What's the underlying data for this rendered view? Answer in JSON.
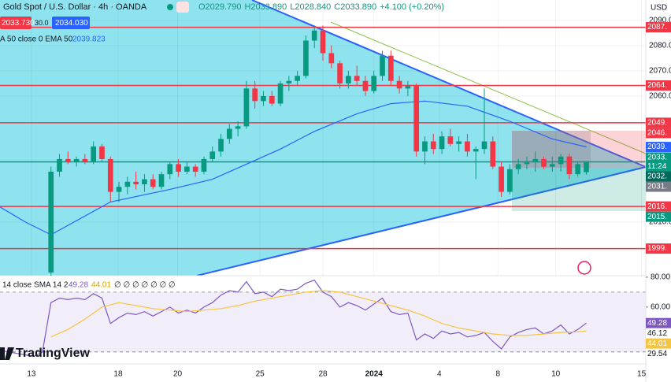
{
  "logo": "TradingView",
  "chart_data": [
    {
      "type": "candlestick",
      "title": "Gold Spot / U.S. Dollar · 4h · OANDA",
      "ohlc_labels": [
        "O2029.790",
        "H2033.890",
        "L2028.840",
        "C2033.890"
      ],
      "change": "+4.100 (+0.20%)",
      "bid": "2033.730",
      "spread": "30.0",
      "ask": "2034.030",
      "currency": "USD",
      "x": [
        6,
        7,
        8,
        9,
        10,
        11,
        12,
        13,
        14,
        15,
        16,
        17,
        18,
        19,
        20,
        21,
        22,
        23,
        24,
        25,
        26,
        27,
        28,
        29,
        30,
        31,
        32,
        33,
        34,
        35,
        36,
        37,
        38,
        39,
        40,
        41,
        42,
        43,
        44,
        45,
        46,
        47,
        48,
        49,
        50,
        51,
        52,
        53,
        54,
        55,
        56,
        57,
        58,
        59,
        60,
        61,
        62,
        63,
        64,
        65,
        66,
        67,
        68,
        69
      ],
      "open": [
        1990,
        2030,
        2035,
        2034,
        2035,
        2034,
        2040,
        2035,
        2022,
        2024,
        2026,
        2025,
        2027,
        2024,
        2029,
        2033,
        2030,
        2032,
        2030,
        2035,
        2038,
        2043,
        2047,
        2048,
        2063,
        2058,
        2060,
        2057,
        2065,
        2066,
        2068,
        2082,
        2086,
        2077,
        2073,
        2065,
        2068,
        2066,
        2062,
        2068,
        2076,
        2066,
        2063,
        2064,
        2038,
        2042,
        2039,
        2044,
        2041,
        2042,
        2038,
        2039,
        2042,
        2032,
        2022,
        2031,
        2033,
        2034,
        2035,
        2032,
        2033,
        2036,
        2029,
        2029.79
      ],
      "high": [
        2032,
        2037,
        2038,
        2036,
        2037,
        2042,
        2041,
        2036,
        2026,
        2028,
        2030,
        2029,
        2029,
        2030,
        2034,
        2035,
        2034,
        2033,
        2036,
        2040,
        2045,
        2049,
        2050,
        2066,
        2066,
        2062,
        2062,
        2066,
        2068,
        2070,
        2084,
        2088,
        2088,
        2080,
        2074,
        2070,
        2072,
        2068,
        2070,
        2078,
        2078,
        2068,
        2066,
        2065,
        2044,
        2045,
        2046,
        2047,
        2044,
        2045,
        2040,
        2063,
        2044,
        2034,
        2033,
        2035,
        2036,
        2038,
        2036,
        2036,
        2037,
        2037,
        2034,
        2033.89
      ],
      "low": [
        1988,
        2028,
        2033,
        2032,
        2033,
        2033,
        2034,
        2018,
        2018,
        2021,
        2023,
        2022,
        2023,
        2023,
        2027,
        2028,
        2029,
        2028,
        2029,
        2034,
        2036,
        2041,
        2044,
        2047,
        2055,
        2056,
        2056,
        2056,
        2062,
        2064,
        2067,
        2079,
        2074,
        2071,
        2063,
        2063,
        2064,
        2060,
        2061,
        2066,
        2064,
        2061,
        2060,
        2036,
        2033,
        2037,
        2037,
        2040,
        2038,
        2036,
        2027,
        2037,
        2031,
        2020,
        2021,
        2029,
        2031,
        2030,
        2031,
        2030,
        2030,
        2027,
        2028,
        2028.84
      ],
      "close": [
        2030,
        2035,
        2034,
        2035,
        2034,
        2040,
        2035,
        2022,
        2024,
        2026,
        2025,
        2027,
        2024,
        2029,
        2033,
        2030,
        2032,
        2030,
        2035,
        2038,
        2043,
        2047,
        2048,
        2063,
        2058,
        2060,
        2057,
        2065,
        2066,
        2068,
        2082,
        2086,
        2077,
        2073,
        2065,
        2068,
        2066,
        2062,
        2068,
        2076,
        2066,
        2063,
        2064,
        2038,
        2042,
        2039,
        2044,
        2041,
        2042,
        2038,
        2039,
        2042,
        2032,
        2022,
        2031,
        2033,
        2034,
        2035,
        2032,
        2033,
        2036,
        2029,
        2033,
        2033.89
      ],
      "up_color": "#089981",
      "down_color": "#f23645",
      "xlim": [
        0,
        76
      ],
      "xticks": [
        {
          "value": 3.7,
          "label": "13"
        },
        {
          "value": 13.9,
          "label": "18"
        },
        {
          "value": 20.9,
          "label": "20"
        },
        {
          "value": 30.6,
          "label": "25"
        },
        {
          "value": 38,
          "label": "28"
        },
        {
          "value": 44,
          "label": "2024"
        },
        {
          "value": 51.7,
          "label": "4"
        },
        {
          "value": 58.6,
          "label": "8"
        },
        {
          "value": 65.4,
          "label": "10"
        },
        {
          "value": 75.5,
          "label": "15"
        }
      ],
      "ylim": [
        1988.75,
        2098.1
      ],
      "yticks": [
        {
          "value": 2090,
          "label": "2090.00"
        },
        {
          "value": 2080,
          "label": "2080.00"
        },
        {
          "value": 2070,
          "label": "2070.00"
        },
        {
          "value": 2060,
          "label": "2060.00"
        },
        {
          "value": 2010,
          "label": "2010.00"
        }
      ],
      "overlay": {
        "legend": "A 50 close 0 EMA 50",
        "value_label": "2039.823",
        "color": "#2962ff",
        "x": [
          0,
          3,
          6,
          13,
          20,
          25,
          29,
          33,
          37,
          42,
          46,
          50,
          55,
          60,
          65,
          69
        ],
        "values": [
          2016,
          2010,
          2005,
          2018,
          2023,
          2027,
          2033,
          2039,
          2046,
          2053,
          2057,
          2058,
          2056,
          2050,
          2043,
          2039.823
        ]
      },
      "levels": {
        "color": "#f23645",
        "values": [
          2087.3,
          2064.2,
          2049.4,
          2016.2,
          1999.5
        ]
      },
      "last_price": {
        "value": 2033.89,
        "label": "2033.",
        "color": "#089981"
      },
      "countdown": "11:24",
      "price_labels": [
        {
          "value": 2087.3,
          "label": "2087.",
          "color": "#f23645"
        },
        {
          "value": 2064.2,
          "label": "2064.",
          "color": "#f23645"
        },
        {
          "value": 2049.4,
          "label": "2049.",
          "color": "#f23645"
        },
        {
          "value": 2046.5,
          "label": "2046.",
          "color": "#f23645"
        },
        {
          "value": 2039.8,
          "label": "2039.",
          "color": "#2962ff"
        },
        {
          "value": 2032.9,
          "label": "2032.",
          "color": "#00695c"
        },
        {
          "value": 2031.5,
          "label": "2031.",
          "color": "#787b86"
        },
        {
          "value": 2016.2,
          "label": "2016.",
          "color": "#f23645"
        },
        {
          "value": 2015.4,
          "label": "2015.",
          "color": "#089981"
        },
        {
          "value": 1999.5,
          "label": "1999.",
          "color": "#f23645"
        }
      ]
    },
    {
      "type": "line",
      "title": "14 close SMA 14 2",
      "extra_legend": "∅ ∅ ∅ ∅ ∅ ∅ ∅",
      "xlim": [
        0,
        76
      ],
      "ylim": [
        22,
        81
      ],
      "yticks": [
        {
          "value": 80,
          "label": "80.00"
        },
        {
          "value": 60,
          "label": "60.00"
        }
      ],
      "bands": [
        70,
        30
      ],
      "series": [
        {
          "color": "#7e57c2",
          "value_label": "49.28",
          "x": [
            0,
            1,
            2,
            3,
            4,
            5,
            6,
            7,
            8,
            9,
            10,
            11,
            12,
            13,
            14,
            15,
            16,
            17,
            18,
            19,
            20,
            21,
            22,
            23,
            24,
            25,
            26,
            27,
            28,
            29,
            30,
            31,
            32,
            33,
            34,
            35,
            36,
            37,
            38,
            39,
            40,
            41,
            42,
            43,
            44,
            45,
            46,
            47,
            48,
            49,
            50,
            51,
            52,
            53,
            54,
            55,
            56,
            57,
            58,
            59,
            60,
            61,
            62,
            63,
            64,
            65,
            66,
            67,
            68,
            69
          ],
          "values": [
            31,
            30,
            29,
            28,
            27,
            30,
            63,
            66,
            65,
            66,
            65,
            69,
            66,
            49,
            53,
            56,
            55,
            57,
            54,
            57,
            60,
            56,
            58,
            56,
            60,
            63,
            68,
            71,
            70,
            77,
            69,
            70,
            67,
            72,
            71,
            72,
            76,
            78,
            70,
            67,
            60,
            63,
            61,
            58,
            62,
            66,
            57,
            55,
            56,
            38,
            42,
            39,
            44,
            42,
            43,
            40,
            41,
            43,
            37,
            32,
            40,
            43,
            45,
            46,
            42,
            44,
            48,
            42,
            45,
            49.28
          ]
        },
        {
          "color": "#f5c542",
          "value_label": "44.01",
          "x": [
            6,
            8,
            10,
            12,
            14,
            16,
            18,
            20,
            22,
            24,
            26,
            28,
            30,
            32,
            34,
            36,
            38,
            40,
            42,
            44,
            46,
            48,
            50,
            52,
            54,
            56,
            58,
            60,
            62,
            64,
            66,
            68,
            69
          ],
          "values": [
            40,
            45,
            52,
            60,
            63,
            61,
            59,
            58,
            57,
            58,
            59,
            61,
            64,
            66,
            68,
            70,
            71,
            70,
            67,
            64,
            61,
            58,
            54,
            49,
            46,
            44,
            42,
            41,
            41,
            42,
            43,
            43.5,
            44.01
          ]
        }
      ],
      "price_labels": [
        {
          "value": 49.28,
          "label": "49.28",
          "color": "#7e57c2"
        },
        {
          "value": 46.12,
          "label": "46.12",
          "color": "#ffffff"
        },
        {
          "value": 44.01,
          "label": "44.01",
          "color": "#f5c542"
        },
        {
          "value": 29.54,
          "label": "29.54",
          "color": "#ffffff"
        }
      ]
    }
  ]
}
